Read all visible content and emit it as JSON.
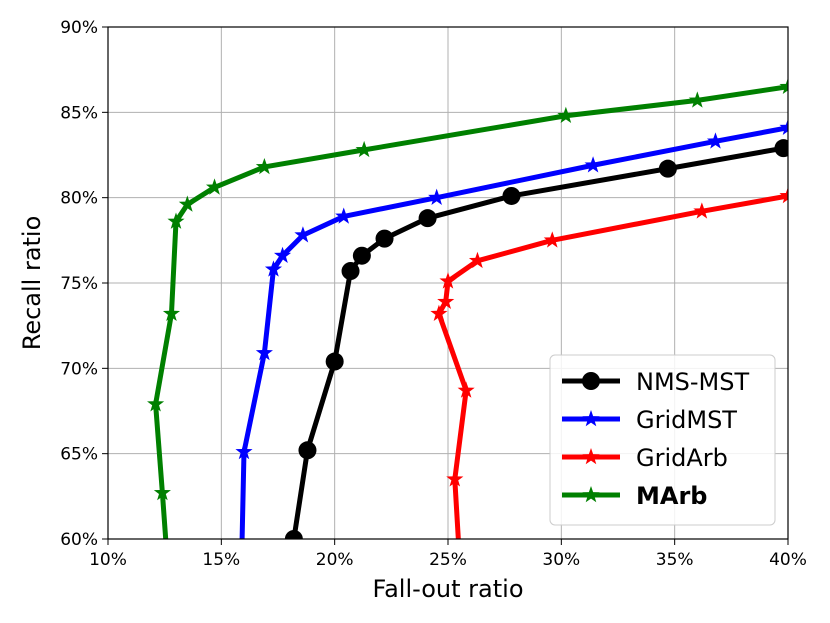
{
  "chart_data": {
    "type": "line",
    "title": "",
    "xlabel": "Fall-out ratio",
    "ylabel": "Recall ratio",
    "xlim": [
      10,
      40
    ],
    "ylim": [
      60,
      90
    ],
    "xticks": [
      "10%",
      "15%",
      "20%",
      "25%",
      "30%",
      "35%",
      "40%"
    ],
    "xtick_values": [
      10,
      15,
      20,
      25,
      30,
      35,
      40
    ],
    "yticks": [
      "60%",
      "65%",
      "70%",
      "75%",
      "80%",
      "85%",
      "90%"
    ],
    "ytick_values": [
      60,
      65,
      70,
      75,
      80,
      85,
      90
    ],
    "grid": true,
    "legend_position": "bottom-right",
    "series": [
      {
        "name": "NMS-MST",
        "color": "#000000",
        "marker": "circle",
        "bold_label": false,
        "points": [
          [
            18.2,
            60.0
          ],
          [
            18.8,
            65.2
          ],
          [
            20.0,
            70.4
          ],
          [
            20.7,
            75.7
          ],
          [
            21.2,
            76.6
          ],
          [
            22.2,
            77.6
          ],
          [
            24.1,
            78.8
          ],
          [
            27.8,
            80.1
          ],
          [
            34.7,
            81.7
          ],
          [
            39.8,
            82.9
          ]
        ]
      },
      {
        "name": "GridMST",
        "color": "#0000ff",
        "marker": "star",
        "bold_label": false,
        "points": [
          [
            15.9,
            59.0
          ],
          [
            16.0,
            65.1
          ],
          [
            16.9,
            70.9
          ],
          [
            17.3,
            75.8
          ],
          [
            17.7,
            76.6
          ],
          [
            18.6,
            77.8
          ],
          [
            20.4,
            78.9
          ],
          [
            24.5,
            80.0
          ],
          [
            31.4,
            81.9
          ],
          [
            36.8,
            83.3
          ],
          [
            40.0,
            84.1
          ]
        ]
      },
      {
        "name": "GridArb",
        "color": "#ff0000",
        "marker": "star",
        "bold_label": false,
        "points": [
          [
            25.5,
            59.0
          ],
          [
            25.3,
            63.5
          ],
          [
            25.8,
            68.7
          ],
          [
            24.6,
            73.2
          ],
          [
            24.9,
            73.9
          ],
          [
            25.0,
            75.1
          ],
          [
            26.3,
            76.3
          ],
          [
            29.6,
            77.5
          ],
          [
            36.2,
            79.2
          ],
          [
            40.0,
            80.1
          ]
        ]
      },
      {
        "name": "MArb",
        "color": "#008000",
        "marker": "star",
        "bold_label": true,
        "points": [
          [
            12.6,
            59.0
          ],
          [
            12.4,
            62.7
          ],
          [
            12.1,
            67.9
          ],
          [
            12.8,
            73.2
          ],
          [
            13.0,
            78.6
          ],
          [
            13.5,
            79.6
          ],
          [
            14.7,
            80.6
          ],
          [
            16.9,
            81.8
          ],
          [
            21.3,
            82.8
          ],
          [
            30.2,
            84.8
          ],
          [
            36.0,
            85.7
          ],
          [
            40.0,
            86.5
          ]
        ]
      }
    ]
  }
}
